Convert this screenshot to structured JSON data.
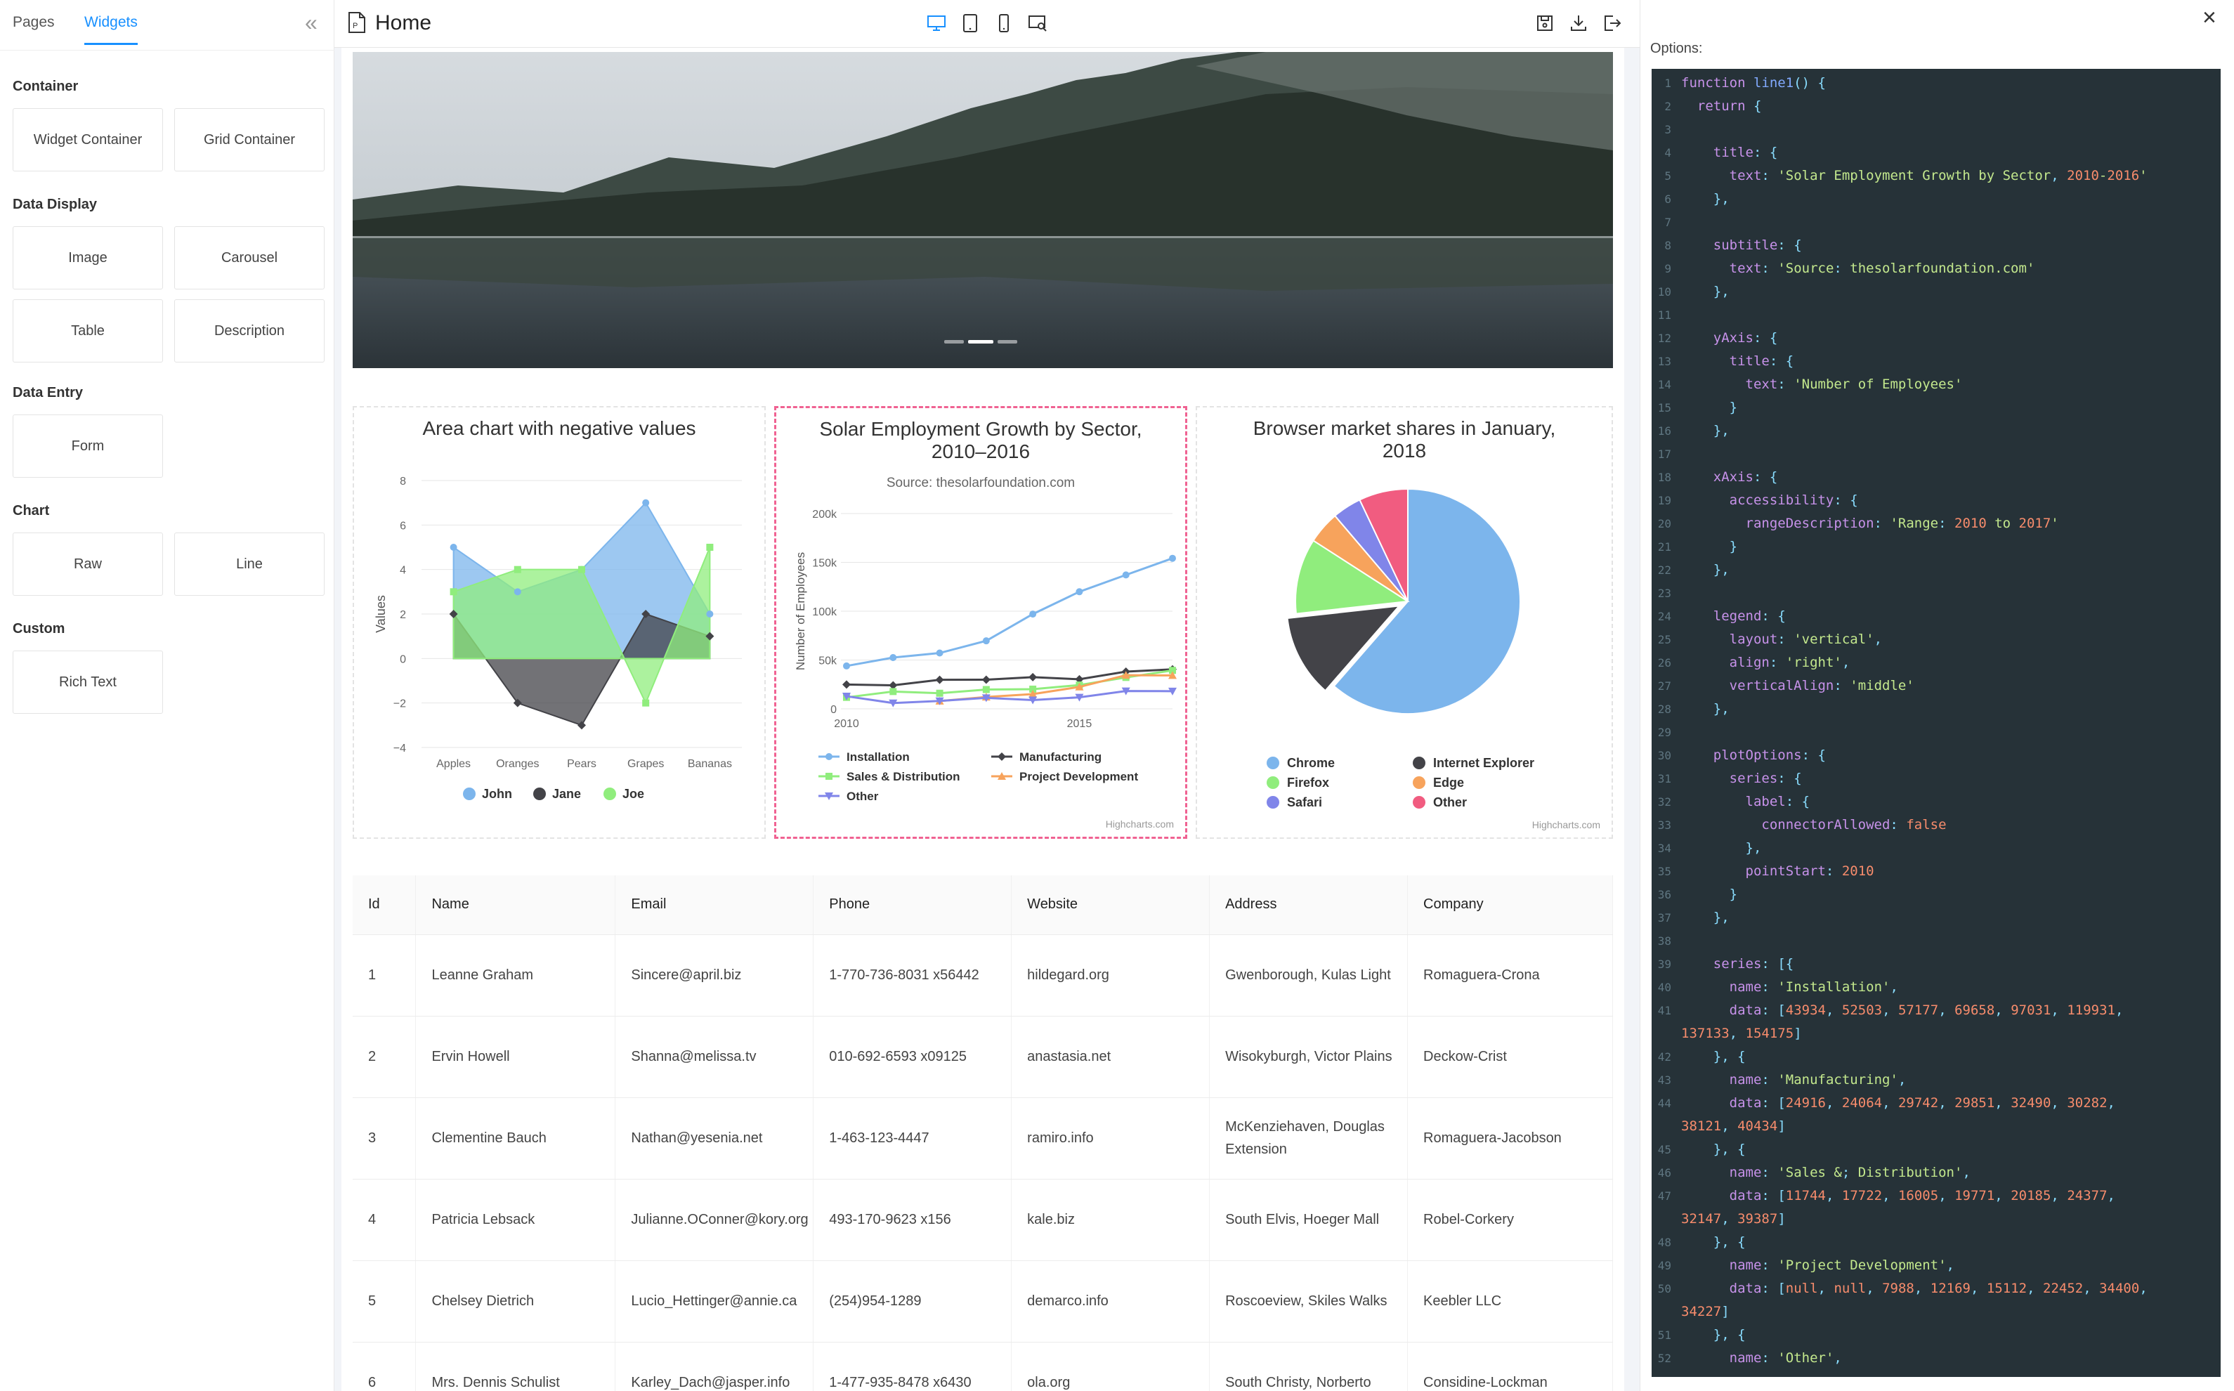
{
  "sidebar": {
    "tabs": [
      "Pages",
      "Widgets"
    ],
    "active_tab": "Widgets",
    "sections": [
      {
        "title": "Container",
        "items": [
          "Widget Container",
          "Grid Container"
        ]
      },
      {
        "title": "Data Display",
        "items": [
          "Image",
          "Carousel",
          "Table",
          "Description"
        ]
      },
      {
        "title": "Data Entry",
        "items": [
          "Form"
        ]
      },
      {
        "title": "Chart",
        "items": [
          "Raw",
          "Line"
        ]
      },
      {
        "title": "Custom",
        "items": [
          "Rich Text"
        ]
      }
    ],
    "collapse_icon": "double-chevron-left-icon"
  },
  "header": {
    "page_title": "Home",
    "device_icons": [
      "desktop-icon",
      "tablet-icon",
      "mobile-icon",
      "preview-icon"
    ],
    "action_icons": [
      "save-icon",
      "download-icon",
      "exit-icon"
    ],
    "accent": "#1890ff"
  },
  "carousel": {
    "slide_count": 3,
    "active_index": 1
  },
  "charts": {
    "area": {
      "chart_data": {
        "type": "area",
        "title": "Area chart with negative values",
        "ylabel": "Values",
        "categories": [
          "Apples",
          "Oranges",
          "Pears",
          "Grapes",
          "Bananas"
        ],
        "ylim": [
          -4,
          8
        ],
        "yticks": [
          "8",
          "6",
          "4",
          "2",
          "0",
          "−2",
          "−4"
        ],
        "series": [
          {
            "name": "John",
            "values": [
              5,
              3,
              4,
              7,
              2
            ],
            "color": "#7cb5ec"
          },
          {
            "name": "Jane",
            "values": [
              2,
              -2,
              -3,
              2,
              1
            ],
            "color": "#434348"
          },
          {
            "name": "Joe",
            "values": [
              3,
              4,
              4,
              -2,
              5
            ],
            "color": "#90ed7d"
          }
        ],
        "legend": "bottom-center"
      }
    },
    "line": {
      "chart_data": {
        "type": "line",
        "title": "Solar Employment Growth by Sector, 2010–2016",
        "subtitle": "Source: thesolarfoundation.com",
        "ylabel": "Number of Employees",
        "x": [
          2010,
          2011,
          2012,
          2013,
          2014,
          2015,
          2016,
          2017
        ],
        "xticks": [
          "2010",
          "2015"
        ],
        "yticks": [
          "200k",
          "150k",
          "100k",
          "50k",
          "0"
        ],
        "ylim": [
          0,
          200000
        ],
        "series": [
          {
            "name": "Installation",
            "values": [
              43934,
              52503,
              57177,
              69658,
              97031,
              119931,
              137133,
              154175
            ],
            "color": "#7cb5ec"
          },
          {
            "name": "Manufacturing",
            "values": [
              24916,
              24064,
              29742,
              29851,
              32490,
              30282,
              38121,
              40434
            ],
            "color": "#434348"
          },
          {
            "name": "Sales & Distribution",
            "values": [
              11744,
              17722,
              16005,
              19771,
              20185,
              24377,
              32147,
              39387
            ],
            "color": "#90ed7d"
          },
          {
            "name": "Project Development",
            "values": [
              null,
              null,
              7988,
              12169,
              15112,
              22452,
              34400,
              34227
            ],
            "color": "#f7a35c"
          },
          {
            "name": "Other",
            "values": [
              12908,
              5948,
              8105,
              11248,
              8989,
              11816,
              18274,
              18111
            ],
            "color": "#8085e9"
          }
        ],
        "legend": "bottom",
        "credits": "Highcharts.com"
      }
    },
    "pie": {
      "chart_data": {
        "type": "pie",
        "title": "Browser market shares in January, 2018",
        "slices": [
          {
            "name": "Chrome",
            "value": 61.41,
            "color": "#7cb5ec"
          },
          {
            "name": "Internet Explorer",
            "value": 11.84,
            "color": "#434348"
          },
          {
            "name": "Firefox",
            "value": 10.85,
            "color": "#90ed7d"
          },
          {
            "name": "Edge",
            "value": 4.67,
            "color": "#f7a35c"
          },
          {
            "name": "Safari",
            "value": 4.18,
            "color": "#8085e9"
          },
          {
            "name": "Other",
            "value": 7.05,
            "color": "#f15c80"
          }
        ],
        "legend": "bottom",
        "credits": "Highcharts.com"
      }
    }
  },
  "table": {
    "columns": [
      "Id",
      "Name",
      "Email",
      "Phone",
      "Website",
      "Address",
      "Company"
    ],
    "rows": [
      [
        "1",
        "Leanne Graham",
        "Sincere@april.biz",
        "1-770-736-8031 x56442",
        "hildegard.org",
        "Gwenborough, Kulas Light",
        "Romaguera-Crona"
      ],
      [
        "2",
        "Ervin Howell",
        "Shanna@melissa.tv",
        "010-692-6593 x09125",
        "anastasia.net",
        "Wisokyburgh, Victor Plains",
        "Deckow-Crist"
      ],
      [
        "3",
        "Clementine Bauch",
        "Nathan@yesenia.net",
        "1-463-123-4447",
        "ramiro.info",
        "McKenziehaven, Douglas Extension",
        "Romaguera-Jacobson"
      ],
      [
        "4",
        "Patricia Lebsack",
        "Julianne.OConner@kory.org",
        "493-170-9623 x156",
        "kale.biz",
        "South Elvis, Hoeger Mall",
        "Robel-Corkery"
      ],
      [
        "5",
        "Chelsey Dietrich",
        "Lucio_Hettinger@annie.ca",
        "(254)954-1289",
        "demarco.info",
        "Roscoeview, Skiles Walks",
        "Keebler LLC"
      ],
      [
        "6",
        "Mrs. Dennis Schulist",
        "Karley_Dach@jasper.info",
        "1-477-935-8478 x6430",
        "ola.org",
        "South Christy, Norberto",
        "Considine-Lockman"
      ]
    ]
  },
  "options": {
    "label": "Options:",
    "close_icon": "close-icon",
    "code_lines": [
      "function line1() {",
      "  return {",
      "",
      "    title: {",
      "      text: 'Solar Employment Growth by Sector, 2010-2016'",
      "    },",
      "",
      "    subtitle: {",
      "      text: 'Source: thesolarfoundation.com'",
      "    },",
      "",
      "    yAxis: {",
      "      title: {",
      "        text: 'Number of Employees'",
      "      }",
      "    },",
      "",
      "    xAxis: {",
      "      accessibility: {",
      "        rangeDescription: 'Range: 2010 to 2017'",
      "      }",
      "    },",
      "",
      "    legend: {",
      "      layout: 'vertical',",
      "      align: 'right',",
      "      verticalAlign: 'middle'",
      "    },",
      "",
      "    plotOptions: {",
      "      series: {",
      "        label: {",
      "          connectorAllowed: false",
      "        },",
      "        pointStart: 2010",
      "      }",
      "    },",
      "",
      "    series: [{",
      "      name: 'Installation',",
      "      data: [43934, 52503, 57177, 69658, 97031, 119931,",
      "137133, 154175]",
      "    }, {",
      "      name: 'Manufacturing',",
      "      data: [24916, 24064, 29742, 29851, 32490, 30282,",
      "38121, 40434]",
      "    }, {",
      "      name: 'Sales & Distribution',",
      "      data: [11744, 17722, 16005, 19771, 20185, 24377,",
      "32147, 39387]",
      "    }, {",
      "      name: 'Project Development',",
      "      data: [null, null, 7988, 12169, 15112, 22452, 34400,",
      "34227]",
      "    }, {",
      "      name: 'Other',"
    ],
    "line_numbers": [
      "1",
      "2",
      "3",
      "4",
      "5",
      "6",
      "7",
      "8",
      "9",
      "10",
      "11",
      "12",
      "13",
      "14",
      "15",
      "16",
      "17",
      "18",
      "19",
      "20",
      "21",
      "22",
      "23",
      "24",
      "25",
      "26",
      "27",
      "28",
      "29",
      "30",
      "31",
      "32",
      "33",
      "34",
      "35",
      "36",
      "37",
      "38",
      "39",
      "40",
      "41",
      "",
      "42",
      "43",
      "44",
      "",
      "45",
      "46",
      "47",
      "",
      "48",
      "49",
      "50",
      "",
      "51",
      "52"
    ]
  }
}
